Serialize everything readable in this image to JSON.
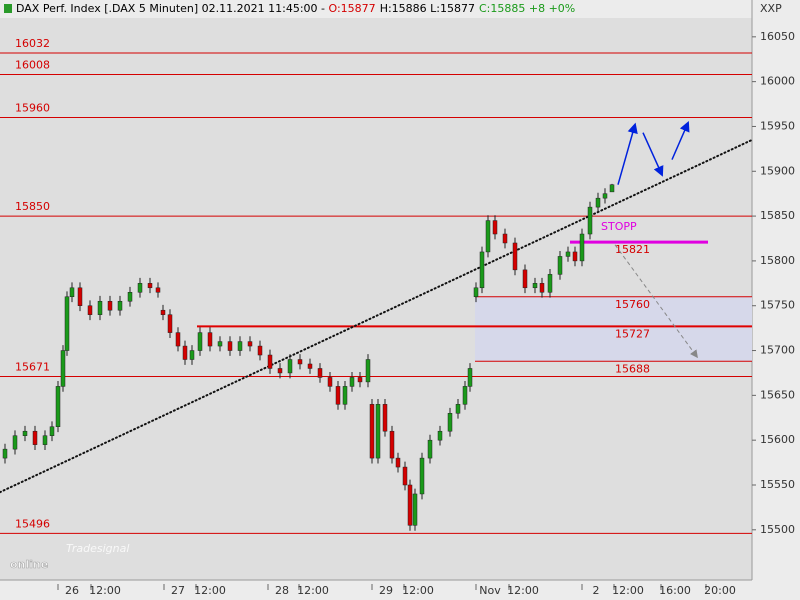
{
  "chart_data": {
    "type": "candlestick",
    "header": {
      "instrument": "DAX Perf. Index [.DAX  5 Minuten] 02.11.2021 11:45:00 - ",
      "open": "O:15877",
      "high_low": "H:15886 L:15877",
      "close": "C:15885 +8 +0%"
    },
    "y_axis_label": "XXP",
    "logo": {
      "small": "Tradesignal",
      "big": "online"
    },
    "stop_label": "STOPP",
    "ylim": [
      15444,
      16071
    ],
    "yticks": [
      15500,
      15550,
      15600,
      15650,
      15700,
      15750,
      15800,
      15850,
      15900,
      15950,
      16000,
      16050
    ],
    "xlim": [
      0,
      752
    ],
    "xticks": [
      {
        "value": 72,
        "label": "26"
      },
      {
        "value": 105,
        "label": "12:00"
      },
      {
        "value": 178,
        "label": "27"
      },
      {
        "value": 210,
        "label": "12:00"
      },
      {
        "value": 282,
        "label": "28"
      },
      {
        "value": 313,
        "label": "12:00"
      },
      {
        "value": 386,
        "label": "29"
      },
      {
        "value": 418,
        "label": "12:00"
      },
      {
        "value": 490,
        "label": "Nov"
      },
      {
        "value": 523,
        "label": "12:00"
      },
      {
        "value": 596,
        "label": "2"
      },
      {
        "value": 628,
        "label": "12:00"
      },
      {
        "value": 675,
        "label": "16:00"
      },
      {
        "value": 720,
        "label": "20:00"
      }
    ],
    "up_color": "#1a9a1a",
    "down_color": "#d40000",
    "candles": {
      "x": [
        5,
        15,
        25,
        35,
        45,
        52,
        58,
        63,
        67,
        72,
        80,
        90,
        100,
        110,
        120,
        130,
        140,
        150,
        158,
        163,
        170,
        178,
        185,
        192,
        200,
        210,
        220,
        230,
        240,
        250,
        260,
        270,
        280,
        290,
        300,
        310,
        320,
        330,
        338,
        345,
        352,
        360,
        368,
        372,
        378,
        385,
        392,
        398,
        405,
        410,
        415,
        422,
        430,
        440,
        450,
        458,
        465,
        470,
        476,
        482,
        488,
        495,
        505,
        515,
        525,
        535,
        542,
        550,
        560,
        568,
        575,
        582,
        590,
        598,
        605,
        612
      ],
      "open": [
        15580,
        15590,
        15605,
        15610,
        15595,
        15605,
        15615,
        15660,
        15700,
        15760,
        15770,
        15750,
        15740,
        15755,
        15745,
        15755,
        15765,
        15775,
        15770,
        15745,
        15740,
        15720,
        15705,
        15690,
        15700,
        15720,
        15705,
        15710,
        15700,
        15710,
        15705,
        15695,
        15680,
        15675,
        15690,
        15685,
        15680,
        15670,
        15660,
        15640,
        15660,
        15670,
        15665,
        15640,
        15580,
        15640,
        15610,
        15580,
        15570,
        15550,
        15505,
        15540,
        15580,
        15600,
        15610,
        15630,
        15640,
        15660,
        15760,
        15770,
        15810,
        15845,
        15830,
        15820,
        15790,
        15770,
        15775,
        15765,
        15785,
        15805,
        15810,
        15800,
        15830,
        15860,
        15870,
        15877
      ],
      "high": [
        15596,
        15611,
        15616,
        15616,
        15611,
        15621,
        15666,
        15706,
        15766,
        15776,
        15776,
        15756,
        15761,
        15761,
        15761,
        15771,
        15781,
        15781,
        15776,
        15751,
        15746,
        15726,
        15711,
        15706,
        15726,
        15726,
        15716,
        15716,
        15716,
        15716,
        15711,
        15701,
        15686,
        15696,
        15696,
        15691,
        15686,
        15676,
        15666,
        15666,
        15676,
        15676,
        15696,
        15646,
        15646,
        15646,
        15616,
        15586,
        15576,
        15556,
        15546,
        15586,
        15606,
        15616,
        15636,
        15646,
        15666,
        15686,
        15776,
        15816,
        15851,
        15851,
        15836,
        15826,
        15796,
        15781,
        15781,
        15791,
        15811,
        15816,
        15816,
        15836,
        15866,
        15876,
        15881,
        15886
      ],
      "low": [
        15574,
        15584,
        15599,
        15589,
        15589,
        15599,
        15609,
        15654,
        15694,
        15754,
        15744,
        15734,
        15734,
        15739,
        15739,
        15749,
        15759,
        15764,
        15759,
        15734,
        15714,
        15699,
        15684,
        15684,
        15694,
        15699,
        15699,
        15694,
        15694,
        15699,
        15689,
        15674,
        15669,
        15669,
        15679,
        15674,
        15664,
        15654,
        15634,
        15634,
        15654,
        15659,
        15659,
        15574,
        15574,
        15604,
        15574,
        15564,
        15544,
        15499,
        15499,
        15534,
        15574,
        15594,
        15604,
        15624,
        15634,
        15654,
        15754,
        15764,
        15804,
        15824,
        15814,
        15784,
        15764,
        15764,
        15759,
        15759,
        15779,
        15799,
        15794,
        15794,
        15824,
        15854,
        15864,
        15877
      ],
      "close": [
        15590,
        15605,
        15610,
        15595,
        15605,
        15615,
        15660,
        15700,
        15760,
        15770,
        15750,
        15740,
        15755,
        15745,
        15755,
        15765,
        15775,
        15770,
        15765,
        15740,
        15720,
        15705,
        15690,
        15700,
        15720,
        15705,
        15710,
        15700,
        15710,
        15705,
        15695,
        15680,
        15675,
        15690,
        15685,
        15680,
        15670,
        15660,
        15640,
        15660,
        15670,
        15665,
        15690,
        15580,
        15640,
        15610,
        15580,
        15570,
        15550,
        15505,
        15540,
        15580,
        15600,
        15610,
        15630,
        15640,
        15660,
        15680,
        15770,
        15810,
        15845,
        15830,
        15820,
        15790,
        15770,
        15775,
        15765,
        15785,
        15805,
        15810,
        15800,
        15830,
        15860,
        15870,
        15875,
        15885
      ]
    },
    "levels": [
      {
        "value": 16032,
        "label_side": "left",
        "from": 0,
        "to": 752,
        "color": "#d40000",
        "width": 1
      },
      {
        "value": 16008,
        "label_side": "left",
        "from": 0,
        "to": 752,
        "color": "#d40000",
        "width": 1
      },
      {
        "value": 15960,
        "label_side": "left",
        "from": 0,
        "to": 752,
        "color": "#d40000",
        "width": 1
      },
      {
        "value": 15850,
        "label_side": "left",
        "from": 0,
        "to": 752,
        "color": "#d40000",
        "width": 1
      },
      {
        "value": 15671,
        "label_side": "left",
        "from": 0,
        "to": 752,
        "color": "#d40000",
        "width": 1
      },
      {
        "value": 15496,
        "label_side": "left",
        "from": 0,
        "to": 752,
        "color": "#d40000",
        "width": 1
      },
      {
        "value": 15760,
        "label_side": "right",
        "from": 475,
        "to": 752,
        "color": "#d40000",
        "width": 1
      },
      {
        "value": 15727,
        "label_side": "right",
        "from": 197,
        "to": 752,
        "color": "#e00000",
        "width": 2
      },
      {
        "value": 15688,
        "label_side": "right",
        "from": 475,
        "to": 752,
        "color": "#d40000",
        "width": 1
      },
      {
        "value": 15821,
        "label_side": "right",
        "from": 570,
        "to": 708,
        "color": "#e000e0",
        "width": 3
      }
    ],
    "zone": {
      "x": [
        475,
        752
      ],
      "y": [
        15688,
        15760
      ],
      "color": "#d6d8ea"
    },
    "trend_line": {
      "x": [
        0,
        752
      ],
      "y": [
        15542,
        15935
      ]
    },
    "arrows": [
      {
        "x": [
          618,
          635
        ],
        "y": [
          15885,
          15952
        ],
        "color": "#0022dd",
        "dashed": false
      },
      {
        "x": [
          643,
          662
        ],
        "y": [
          15943,
          15896
        ],
        "color": "#0022dd",
        "dashed": false
      },
      {
        "x": [
          672,
          688
        ],
        "y": [
          15913,
          15954
        ],
        "color": "#0022dd",
        "dashed": false
      },
      {
        "x": [
          615,
          697
        ],
        "y": [
          15818,
          15693
        ],
        "color": "#888888",
        "dashed": true
      }
    ]
  }
}
